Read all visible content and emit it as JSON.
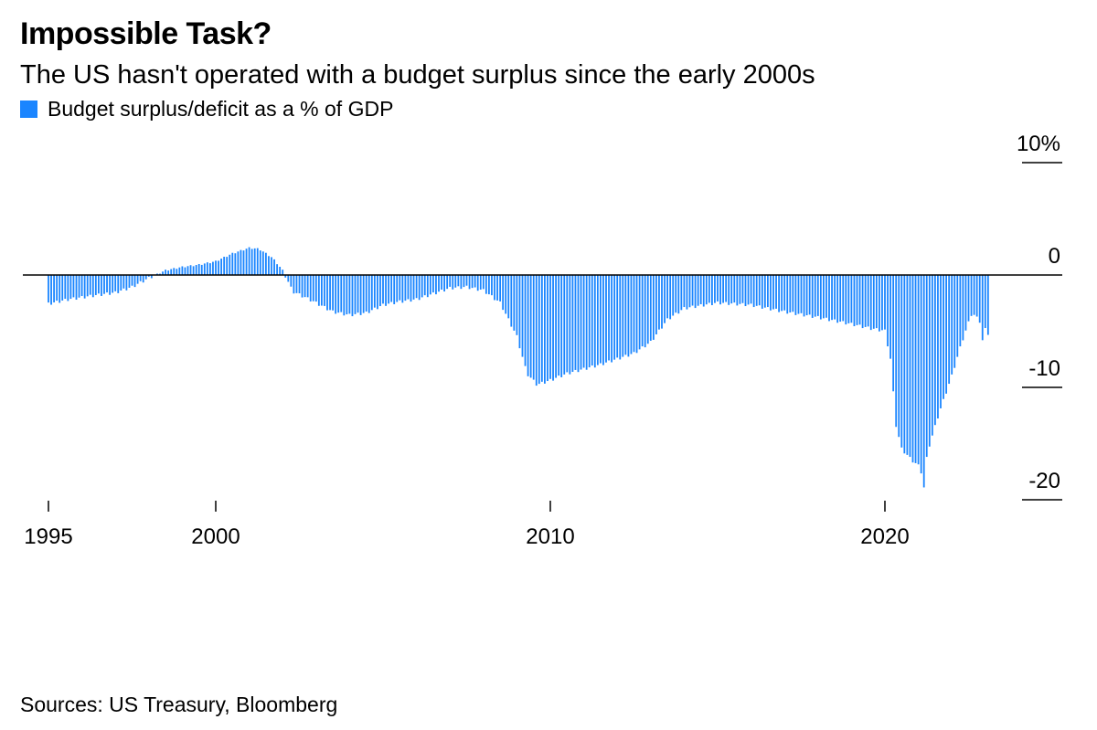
{
  "title": "Impossible Task?",
  "subtitle": "The US hasn't operated with a budget surplus since the early 2000s",
  "legend": {
    "label": "Budget surplus/deficit as a % of GDP",
    "color": "#1a85ff"
  },
  "source": "Sources: US Treasury, Bloomberg",
  "chart_data": {
    "type": "bar",
    "title": "Impossible Task?",
    "ylabel": "Budget surplus/deficit as a % of GDP",
    "xlabel": "",
    "ylim": [
      -20,
      10
    ],
    "y_ticks": [
      10,
      0,
      -10,
      -20
    ],
    "y_tick_labels": [
      "10%",
      "0",
      "-10",
      "-20"
    ],
    "x_ticks": [
      1995,
      2000,
      2010,
      2020
    ],
    "x_tick_labels": [
      "1995",
      "2000",
      "2010",
      "2020"
    ],
    "x_range": [
      1995,
      2023.1
    ],
    "series_color": "#1a85ff",
    "frequency": "monthly (rolling 12-month)",
    "anchors": [
      [
        1995.0,
        -2.6
      ],
      [
        1995.6,
        -2.2
      ],
      [
        1996.5,
        -1.8
      ],
      [
        1997.0,
        -1.6
      ],
      [
        1997.5,
        -1.1
      ],
      [
        1998.0,
        -0.3
      ],
      [
        1998.5,
        0.4
      ],
      [
        1999.0,
        0.7
      ],
      [
        1999.5,
        0.9
      ],
      [
        2000.0,
        1.2
      ],
      [
        2000.5,
        1.9
      ],
      [
        2001.0,
        2.4
      ],
      [
        2001.3,
        2.3
      ],
      [
        2001.7,
        1.5
      ],
      [
        2002.0,
        0.4
      ],
      [
        2002.3,
        -1.5
      ],
      [
        2002.8,
        -2.2
      ],
      [
        2003.5,
        -3.3
      ],
      [
        2004.0,
        -3.6
      ],
      [
        2004.5,
        -3.4
      ],
      [
        2005.0,
        -2.7
      ],
      [
        2005.5,
        -2.4
      ],
      [
        2006.0,
        -2.2
      ],
      [
        2006.5,
        -1.7
      ],
      [
        2007.0,
        -1.2
      ],
      [
        2007.5,
        -1.1
      ],
      [
        2008.0,
        -1.4
      ],
      [
        2008.5,
        -2.5
      ],
      [
        2009.0,
        -5.5
      ],
      [
        2009.3,
        -8.8
      ],
      [
        2009.6,
        -9.8
      ],
      [
        2010.0,
        -9.4
      ],
      [
        2010.5,
        -8.8
      ],
      [
        2011.0,
        -8.4
      ],
      [
        2011.5,
        -8.0
      ],
      [
        2012.0,
        -7.5
      ],
      [
        2012.5,
        -7.0
      ],
      [
        2013.0,
        -6.0
      ],
      [
        2013.5,
        -4.0
      ],
      [
        2014.0,
        -3.0
      ],
      [
        2015.0,
        -2.5
      ],
      [
        2016.0,
        -2.7
      ],
      [
        2017.0,
        -3.3
      ],
      [
        2018.0,
        -3.8
      ],
      [
        2019.0,
        -4.4
      ],
      [
        2019.6,
        -4.8
      ],
      [
        2020.0,
        -5.0
      ],
      [
        2020.2,
        -8.0
      ],
      [
        2020.3,
        -13.0
      ],
      [
        2020.5,
        -15.5
      ],
      [
        2020.8,
        -16.5
      ],
      [
        2021.0,
        -17.0
      ],
      [
        2021.15,
        -18.0
      ],
      [
        2021.3,
        -15.5
      ],
      [
        2021.6,
        -12.5
      ],
      [
        2022.0,
        -9.0
      ],
      [
        2022.3,
        -6.0
      ],
      [
        2022.6,
        -3.4
      ],
      [
        2022.8,
        -4.0
      ],
      [
        2023.1,
        -5.3
      ]
    ],
    "spikes": [
      [
        2021.2,
        -18.9
      ],
      [
        2022.9,
        -5.8
      ]
    ]
  }
}
